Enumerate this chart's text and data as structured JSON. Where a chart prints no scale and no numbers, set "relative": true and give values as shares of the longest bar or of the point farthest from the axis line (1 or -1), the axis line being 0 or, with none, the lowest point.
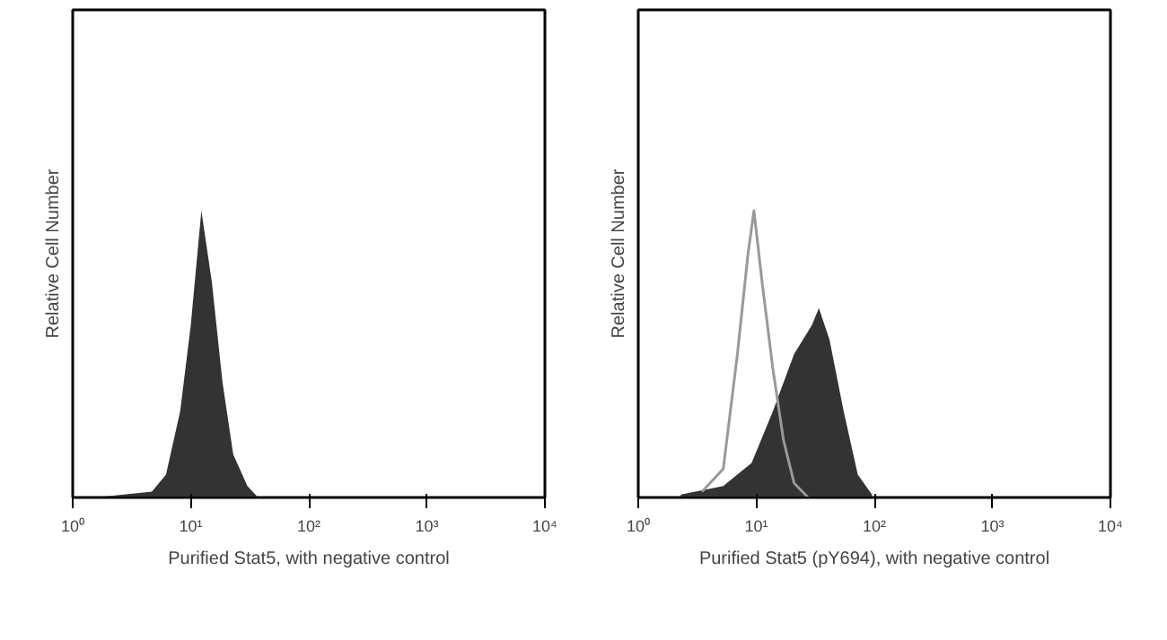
{
  "chart_data": [
    {
      "type": "area",
      "xlabel": "Purified Stat5, with negative control",
      "ylabel": "Relative Cell Number",
      "relative": true,
      "log": "x",
      "grid": false,
      "xlim": [
        1,
        10000
      ],
      "xticks": [
        {
          "value": 1,
          "label": "10⁰"
        },
        {
          "value": 10,
          "label": "10¹"
        },
        {
          "value": 100,
          "label": "10²"
        },
        {
          "value": 1000,
          "label": "10³"
        },
        {
          "value": 10000,
          "label": "10⁴"
        }
      ],
      "series": [
        {
          "color": "#333333",
          "x": [
            1.55,
            4.68,
            6.17,
            8.13,
            10,
            12.3,
            15.1,
            18.6,
            22.9,
            30.2,
            37.2
          ],
          "values": [
            0,
            0.02,
            0.08,
            0.3,
            0.6,
            1.0,
            0.75,
            0.4,
            0.15,
            0.04,
            0
          ]
        }
      ]
    },
    {
      "type": "area",
      "xlabel": "Purified Stat5 (pY694), with negative control",
      "ylabel": "Relative Cell Number",
      "relative": true,
      "log": "x",
      "grid": false,
      "xlim": [
        1,
        10000
      ],
      "xticks": [
        {
          "value": 1,
          "label": "10⁰"
        },
        {
          "value": 10,
          "label": "10¹"
        },
        {
          "value": 100,
          "label": "10²"
        },
        {
          "value": 1000,
          "label": "10³"
        },
        {
          "value": 10000,
          "label": "10⁴"
        }
      ],
      "series": [
        {
          "color": "#333333",
          "x": [
            2.29,
            5.25,
            9.12,
            13.8,
            20.9,
            29.5,
            33.9,
            41.7,
            55.0,
            72.4,
            95.5
          ],
          "values": [
            0.01,
            0.04,
            0.12,
            0.3,
            0.5,
            0.6,
            0.66,
            0.55,
            0.3,
            0.08,
            0.01
          ]
        },
        {
          "type": "line",
          "color": "#999999",
          "x": [
            3.47,
            5.25,
            6.92,
            8.51,
            9.55,
            11.2,
            13.8,
            17.0,
            20.9,
            27.5
          ],
          "values": [
            0.02,
            0.1,
            0.5,
            0.85,
            1.0,
            0.75,
            0.45,
            0.2,
            0.05,
            0
          ]
        }
      ]
    }
  ]
}
